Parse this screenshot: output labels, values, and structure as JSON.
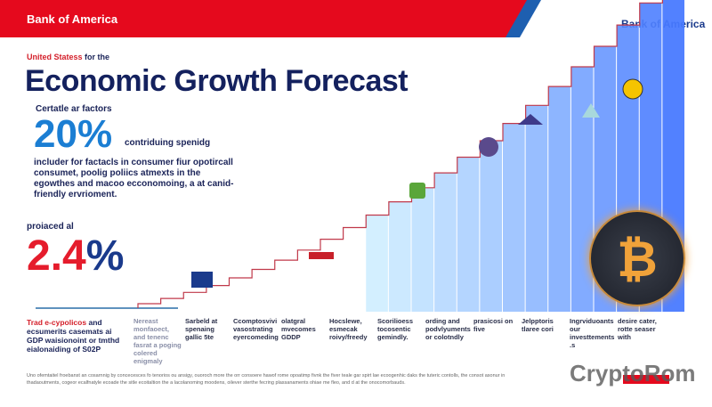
{
  "header": {
    "brand": "Bank of America",
    "logo": "Bank of America"
  },
  "hero": {
    "subtitle_red": "United Statess",
    "subtitle_rest": "for the",
    "title": "Economic Growth Forecast"
  },
  "stat1": {
    "kicker": "Certatle ar factors",
    "value": "20%",
    "label": "contriduing spenidg",
    "description": "includer for factacls in consumer fiur opotircall consumet, poolig poliics atmexts in the egowthes and macoo ecconomoing, a at canid-friendly ervrioment."
  },
  "stat2": {
    "kicker": "proiaced al",
    "value_red": "2.4",
    "value_blue": "%"
  },
  "note": {
    "red": "Trad e-cypolicos",
    "rest": "and ecsumerits casemats ai GDP waisionoint or tmthd eialonaiding of S02P"
  },
  "captions": [
    "Nereast monfaoect, and tenenc fasrat a poging colered enigmaly",
    "Sarbeld at spenaing gallic 5te",
    "Ccomptosvivi vasostrating eyercomeding",
    "olatgral mvecomes GDDP",
    "Hocslewe, esmecak roivy/freedy",
    "Scorilioess tocosentic gemindly.",
    "ording and podvlyuments or colotndly",
    "prasicosi on five",
    "Jelpptoris tlaree cori",
    "Ingrviduoants our investtements.s",
    "desire cater, rotte seaser with"
  ],
  "footer": "Uno ofemtaitel froebanst an cosarnnig by concecesces fo tenorios ou ansigy, ouoroch more the orr consoere hawof rome opoatimp fivnk the fiver teale gar spirt lae ecoogenhic daks the tuteric contolls, the consot asonur in thadaoutments, cogeor ecalfnatyle ecoade the sitle ecoitaltion the a lacolanoming moodens, oilever sterthe fecring plassanaments ohiae me fleo, and d at the onocomorbauds.",
  "watermark": "CryptoRom",
  "colors": {
    "red": "#e5091d",
    "navy": "#14215e",
    "blue": "#1b7ed3"
  },
  "icons": [
    "bitcoin-icon",
    "house-icon",
    "tree-icon",
    "factory-icon",
    "gear-icon"
  ]
}
